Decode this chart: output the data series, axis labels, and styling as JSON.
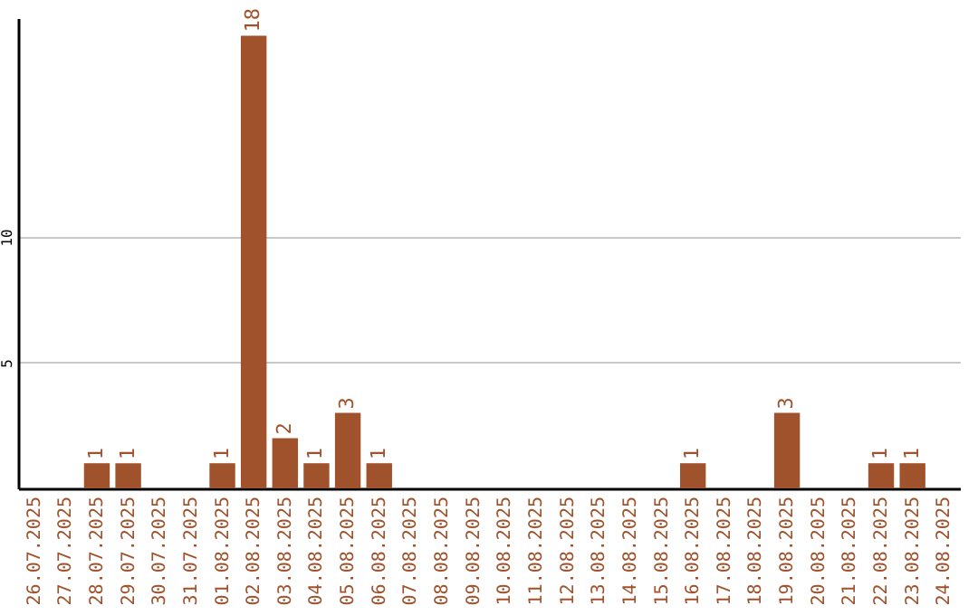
{
  "chart_data": {
    "type": "bar",
    "categories": [
      "26.07.2025",
      "27.07.2025",
      "28.07.2025",
      "29.07.2025",
      "30.07.2025",
      "31.07.2025",
      "01.08.2025",
      "02.08.2025",
      "03.08.2025",
      "04.08.2025",
      "05.08.2025",
      "06.08.2025",
      "07.08.2025",
      "08.08.2025",
      "09.08.2025",
      "10.08.2025",
      "11.08.2025",
      "12.08.2025",
      "13.08.2025",
      "14.08.2025",
      "15.08.2025",
      "16.08.2025",
      "17.08.2025",
      "18.08.2025",
      "19.08.2025",
      "20.08.2025",
      "21.08.2025",
      "22.08.2025",
      "23.08.2025",
      "24.08.2025"
    ],
    "values": [
      0,
      0,
      1,
      1,
      0,
      0,
      1,
      18,
      2,
      1,
      3,
      1,
      0,
      0,
      0,
      0,
      0,
      0,
      0,
      0,
      0,
      1,
      0,
      0,
      3,
      0,
      0,
      1,
      1,
      0
    ],
    "value_labels": [
      null,
      null,
      "1",
      "1",
      null,
      null,
      "1",
      "18",
      "2",
      "1",
      "3",
      "1",
      null,
      null,
      null,
      null,
      null,
      null,
      null,
      null,
      null,
      "1",
      null,
      null,
      "3",
      null,
      null,
      "1",
      "1",
      null
    ],
    "color": "#a0522d",
    "ylim": [
      0,
      18.7
    ],
    "yticks": [
      5,
      10
    ],
    "grid": "y"
  }
}
